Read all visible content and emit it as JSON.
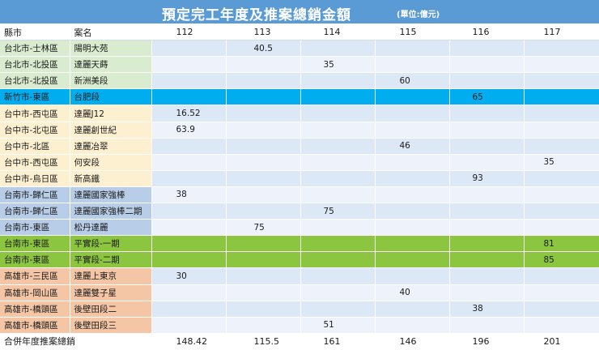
{
  "title": "預定完工年度及推案總銷金額",
  "unit": "(單位:億元)",
  "colors": {
    "title_bar": "#5b9bd5",
    "taipei": "#d9ecd0",
    "hsinchu_row": "#00aeef",
    "taichung": "#fdf0d0",
    "tainan": "#b8cde8",
    "tainan_phase_rows": "#8cc640",
    "kaohsiung": "#f4c6a6",
    "cell_fill": "#dde8f6"
  },
  "headers": [
    "縣市",
    "案名",
    "112",
    "113",
    "114",
    "115",
    "116",
    "117"
  ],
  "rows": [
    {
      "city": "台北市-士林區",
      "project": "陽明大苑",
      "vals": [
        "",
        "40.5",
        "",
        "",
        "",
        ""
      ],
      "group": "green"
    },
    {
      "city": "台北市-北投區",
      "project": "達麗天蒔",
      "vals": [
        "",
        "",
        "35",
        "",
        "",
        ""
      ],
      "group": "green"
    },
    {
      "city": "台北市-北投區",
      "project": "新洲美段",
      "vals": [
        "",
        "",
        "",
        "60",
        "",
        ""
      ],
      "group": "green"
    },
    {
      "city": "新竹市-東區",
      "project": "台肥段",
      "vals": [
        "",
        "",
        "",
        "",
        "65",
        ""
      ],
      "group": "cyan"
    },
    {
      "city": "台中市-西屯區",
      "project": "達麗J12",
      "vals": [
        "16.52",
        "",
        "",
        "",
        "",
        ""
      ],
      "group": "yellow"
    },
    {
      "city": "台中市-北屯區",
      "project": "達麗創世紀",
      "vals": [
        "63.9",
        "",
        "",
        "",
        "",
        ""
      ],
      "group": "yellow"
    },
    {
      "city": "台中市-北區",
      "project": "達麗冶翠",
      "vals": [
        "",
        "",
        "",
        "46",
        "",
        ""
      ],
      "group": "yellow"
    },
    {
      "city": "台中市-西屯區",
      "project": "何安段",
      "vals": [
        "",
        "",
        "",
        "",
        "",
        "35"
      ],
      "group": "yellow"
    },
    {
      "city": "台中市-烏日區",
      "project": "新高鐵",
      "vals": [
        "",
        "",
        "",
        "",
        "93",
        ""
      ],
      "group": "yellow"
    },
    {
      "city": "台南市-歸仁區",
      "project": "達麗國家強棒",
      "vals": [
        "38",
        "",
        "",
        "",
        "",
        ""
      ],
      "group": "blue"
    },
    {
      "city": "台南市-歸仁區",
      "project": "達麗國家強棒二期",
      "vals": [
        "",
        "",
        "75",
        "",
        "",
        ""
      ],
      "group": "blue"
    },
    {
      "city": "台南市-東區",
      "project": "松丹達麗",
      "vals": [
        "",
        "75",
        "",
        "",
        "",
        ""
      ],
      "group": "blue"
    },
    {
      "city": "台南市-東區",
      "project": "平實段-一期",
      "vals": [
        "",
        "",
        "",
        "",
        "",
        "81"
      ],
      "group": "lime"
    },
    {
      "city": "台南市-東區",
      "project": "平實段-二期",
      "vals": [
        "",
        "",
        "",
        "",
        "",
        "85"
      ],
      "group": "lime"
    },
    {
      "city": "高雄市-三民區",
      "project": "達麗上東京",
      "vals": [
        "30",
        "",
        "",
        "",
        "",
        ""
      ],
      "group": "orange"
    },
    {
      "city": "高雄市-岡山區",
      "project": "達麗雙子星",
      "vals": [
        "",
        "",
        "",
        "40",
        "",
        ""
      ],
      "group": "orange"
    },
    {
      "city": "高雄市-橋頭區",
      "project": "後壁田段二",
      "vals": [
        "",
        "",
        "",
        "",
        "38",
        ""
      ],
      "group": "orange"
    },
    {
      "city": "高雄市-橋頭區",
      "project": "後壁田段三",
      "vals": [
        "",
        "",
        "51",
        "",
        "",
        ""
      ],
      "group": "orange"
    }
  ],
  "total": {
    "label": "合併年度推案總銷",
    "vals": [
      "148.42",
      "115.5",
      "161",
      "146",
      "196",
      "201"
    ]
  }
}
